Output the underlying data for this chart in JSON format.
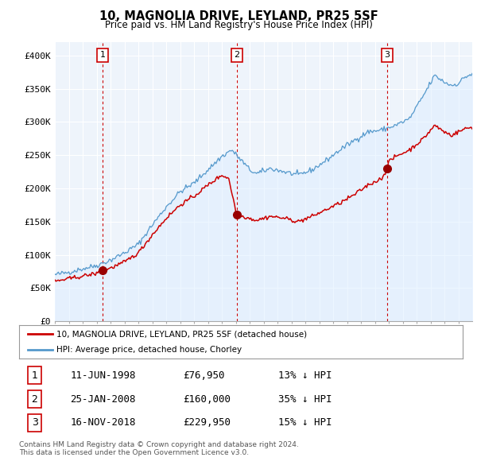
{
  "title": "10, MAGNOLIA DRIVE, LEYLAND, PR25 5SF",
  "subtitle": "Price paid vs. HM Land Registry's House Price Index (HPI)",
  "hpi_color": "#5599cc",
  "hpi_fill_color": "#ddeeff",
  "price_color": "#cc0000",
  "sale_marker_color": "#990000",
  "sale_year_nums": [
    1998.44,
    2008.07,
    2018.87
  ],
  "sale_prices": [
    76950,
    160000,
    229950
  ],
  "sale_labels": [
    "1",
    "2",
    "3"
  ],
  "legend_entries": [
    "10, MAGNOLIA DRIVE, LEYLAND, PR25 5SF (detached house)",
    "HPI: Average price, detached house, Chorley"
  ],
  "table_rows": [
    [
      "1",
      "11-JUN-1998",
      "£76,950",
      "13% ↓ HPI"
    ],
    [
      "2",
      "25-JAN-2008",
      "£160,000",
      "35% ↓ HPI"
    ],
    [
      "3",
      "16-NOV-2018",
      "£229,950",
      "15% ↓ HPI"
    ]
  ],
  "footer": "Contains HM Land Registry data © Crown copyright and database right 2024.\nThis data is licensed under the Open Government Licence v3.0.",
  "ylim": [
    0,
    420000
  ],
  "yticks": [
    0,
    50000,
    100000,
    150000,
    200000,
    250000,
    300000,
    350000,
    400000
  ],
  "ytick_labels": [
    "£0",
    "£50K",
    "£100K",
    "£150K",
    "£200K",
    "£250K",
    "£300K",
    "£350K",
    "£400K"
  ],
  "background_color": "#ffffff",
  "chart_bg_color": "#eef4fb",
  "grid_color": "#ffffff",
  "vline_color": "#cc0000",
  "xlim_left": 1995.0,
  "xlim_right": 2025.0
}
